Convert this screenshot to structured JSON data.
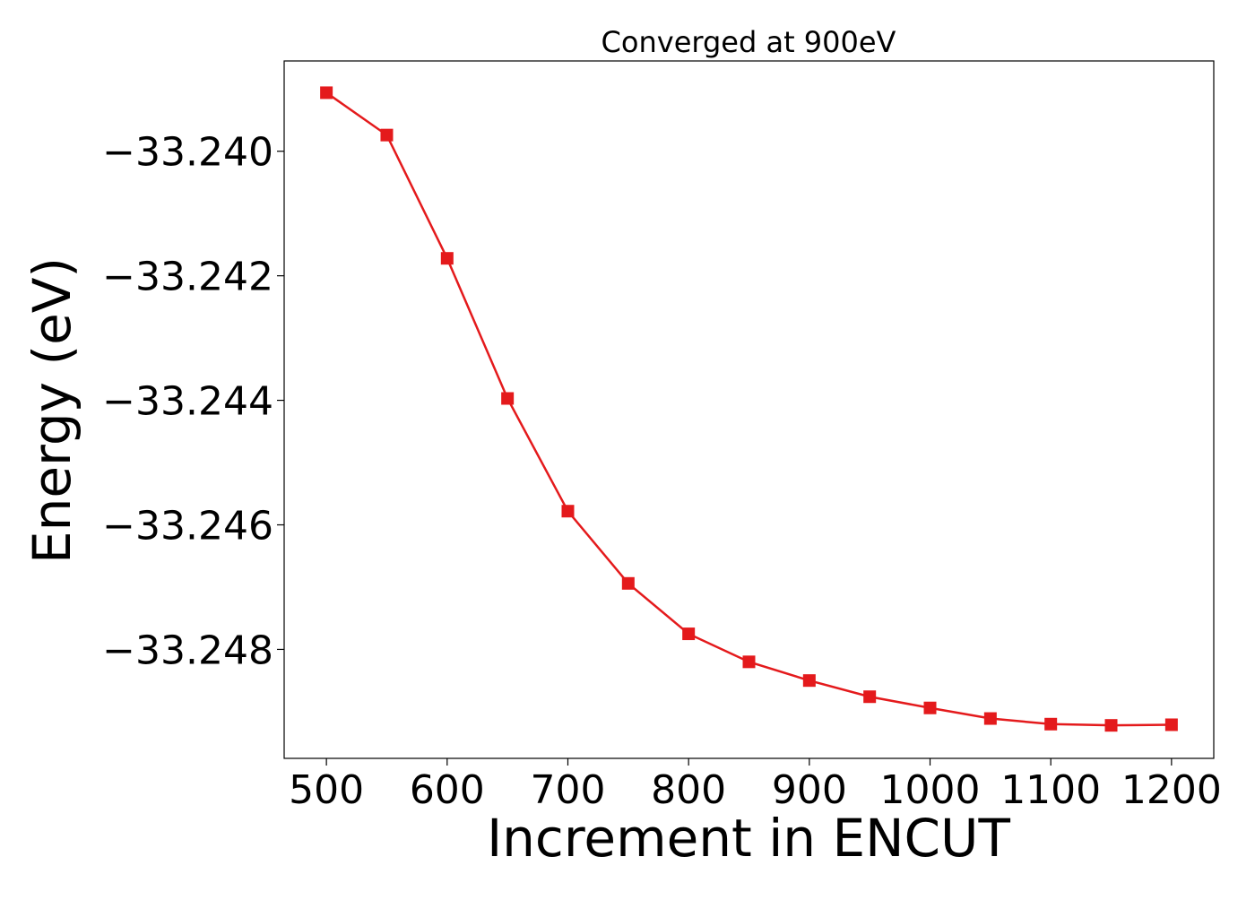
{
  "chart_data": {
    "type": "line",
    "title": "Converged at 900eV",
    "xlabel": "Increment in ENCUT",
    "ylabel": "Energy (eV)",
    "xlim": [
      465,
      1235
    ],
    "ylim": [
      -33.24975,
      -33.23855
    ],
    "xticks": [
      500,
      600,
      700,
      800,
      900,
      1000,
      1100,
      1200
    ],
    "yticks": [
      -33.24,
      -33.242,
      -33.244,
      -33.246,
      -33.248
    ],
    "ytick_labels": [
      "−33.240",
      "−33.242",
      "−33.244",
      "−33.246",
      "−33.248"
    ],
    "grid": false,
    "legend": "none",
    "series": [
      {
        "color": "#e41a1c",
        "marker": "square",
        "x": [
          500,
          550,
          600,
          650,
          700,
          750,
          800,
          850,
          900,
          950,
          1000,
          1050,
          1100,
          1150,
          1200
        ],
        "y": [
          -33.23906,
          -33.23974,
          -33.24172,
          -33.24397,
          -33.24578,
          -33.24694,
          -33.24775,
          -33.2482,
          -33.2485,
          -33.24876,
          -33.24894,
          -33.24911,
          -33.2492,
          -33.24922,
          -33.24921
        ]
      }
    ]
  }
}
